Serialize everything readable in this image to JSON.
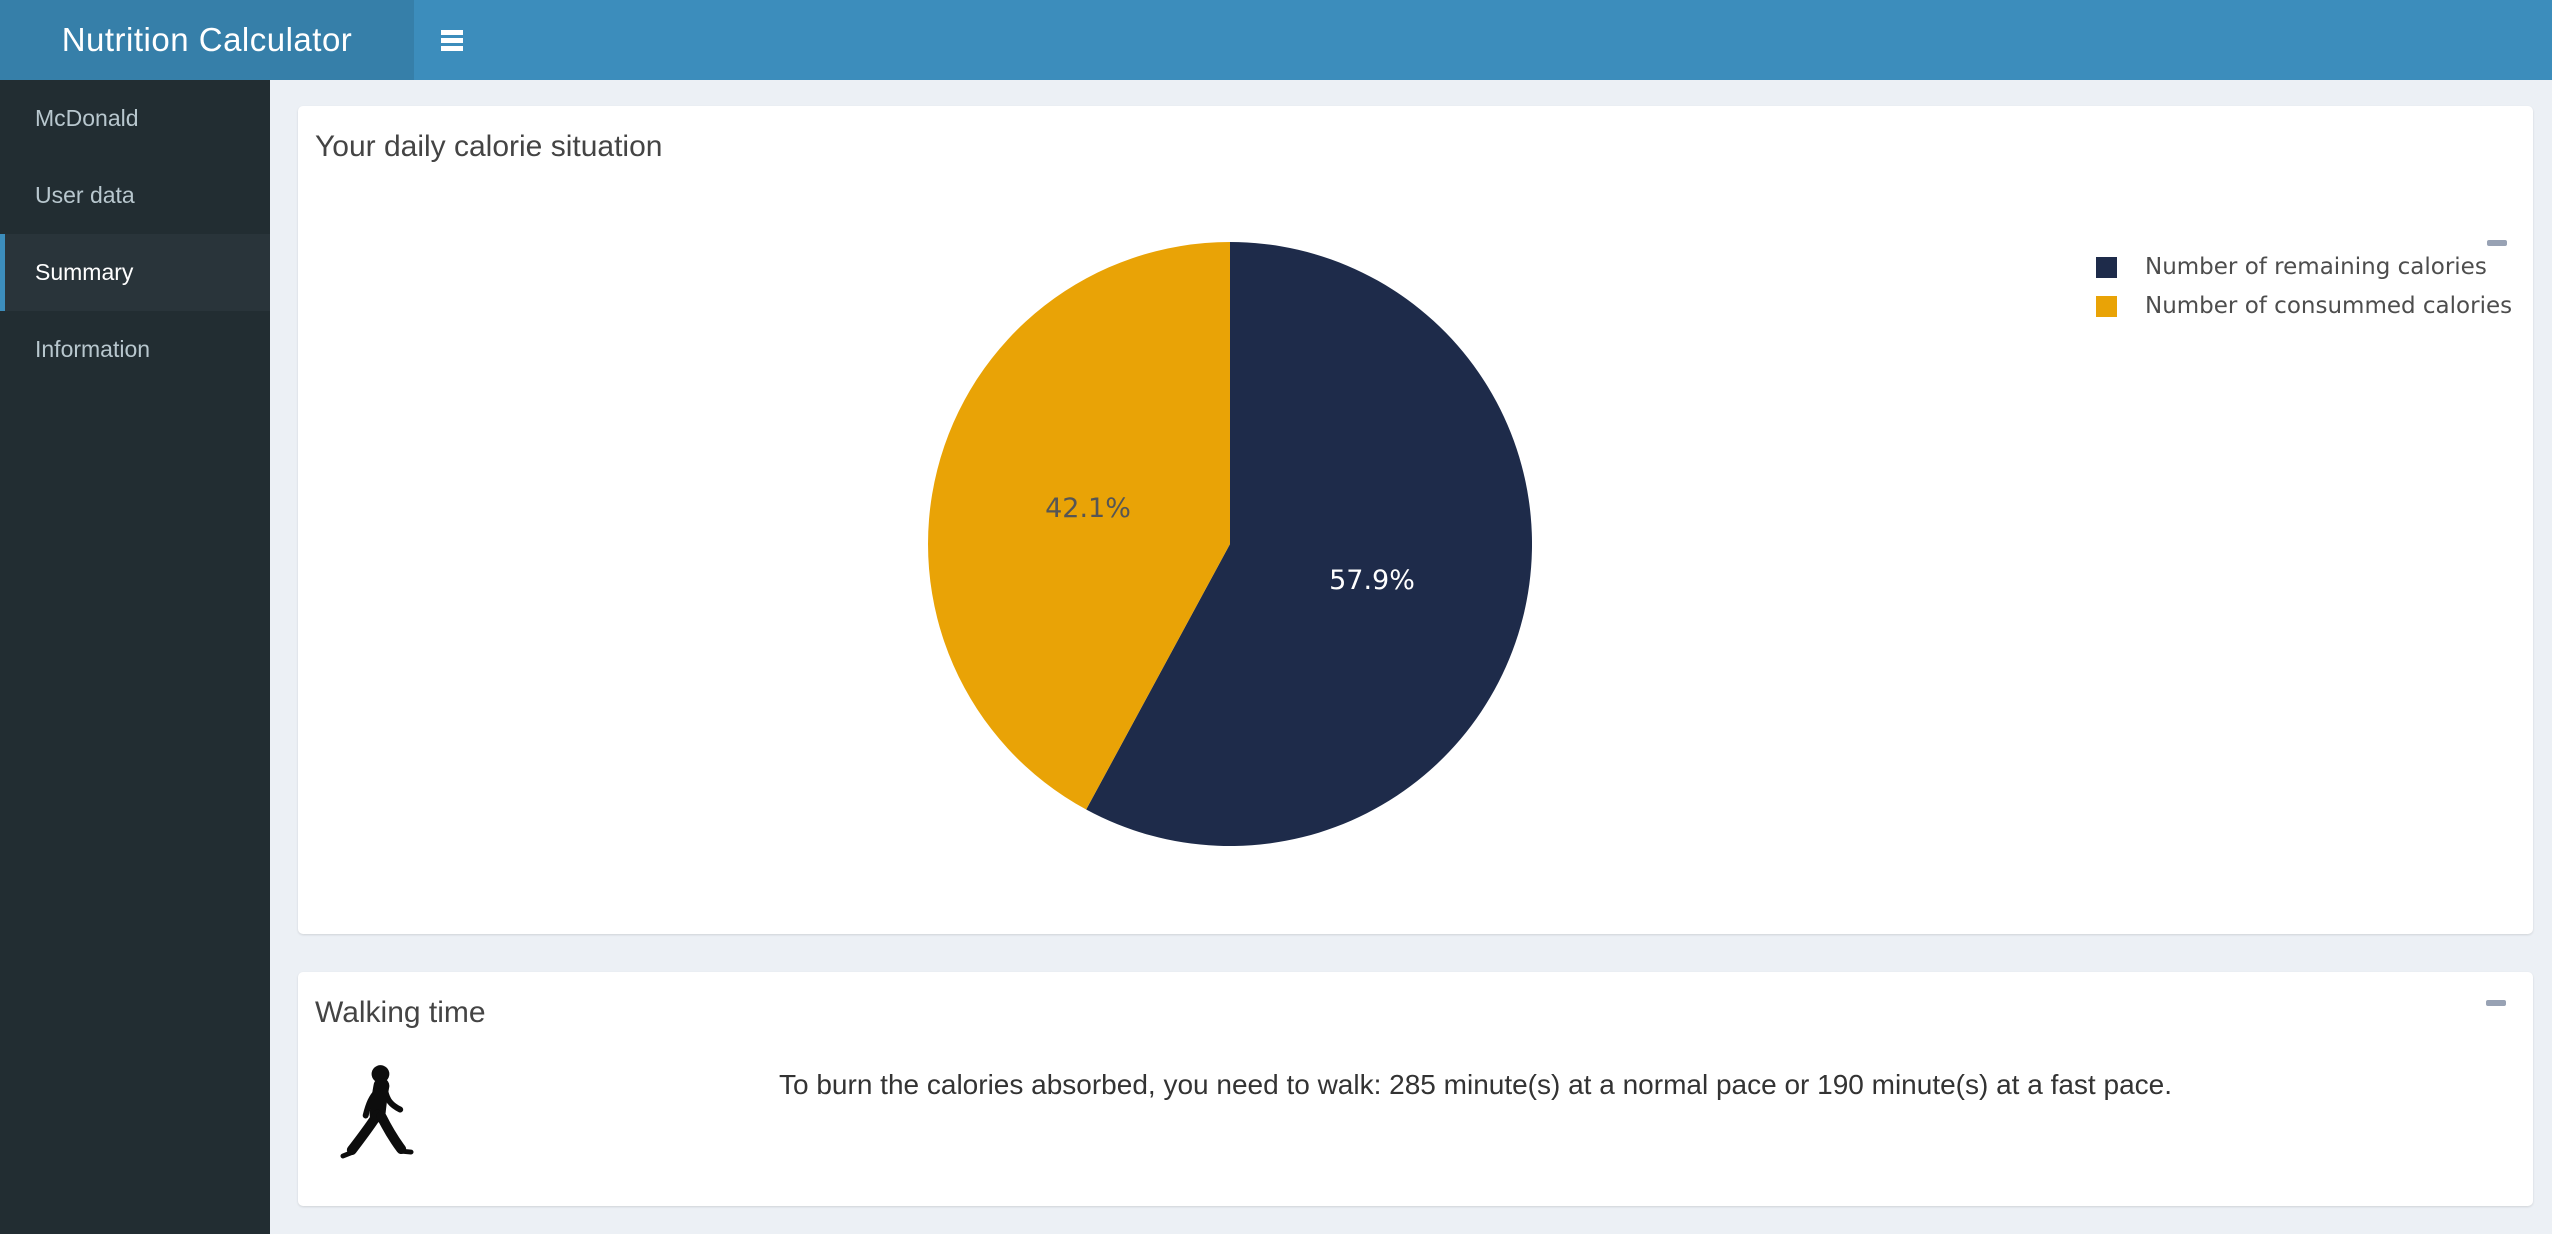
{
  "app": {
    "title": "Nutrition Calculator"
  },
  "sidebar": {
    "items": [
      {
        "label": "McDonald",
        "active": false
      },
      {
        "label": "User data",
        "active": false
      },
      {
        "label": "Summary",
        "active": true
      },
      {
        "label": "Information",
        "active": false
      }
    ]
  },
  "cards": {
    "calorie": {
      "title": "Your daily calorie situation"
    },
    "walking": {
      "title": "Walking time",
      "text": "To burn the calories absorbed, you need to walk: 285 minute(s) at a normal pace or 190 minute(s) at a fast pace."
    }
  },
  "chart_data": {
    "type": "pie",
    "title": "Your daily calorie situation",
    "slices": [
      {
        "label": "Number of remaining calories",
        "value": 57.9,
        "display": "57.9%",
        "color": "#1e2b4a",
        "text_color": "#ffffff"
      },
      {
        "label": "Number of consummed calories",
        "value": 42.1,
        "display": "42.1%",
        "color": "#e9a306",
        "text_color": "#555555"
      }
    ],
    "start_angle_deg": 0,
    "direction": "clockwise",
    "legend_position": "top-right",
    "labels_inside": true
  },
  "walking_stats": {
    "normal_pace_minutes": 285,
    "fast_pace_minutes": 190
  },
  "colors": {
    "navbar": "#3c8dbc",
    "logo_bg": "#367fa9",
    "sidebar_bg": "#222d32",
    "sidebar_active_bg": "#29343a",
    "sidebar_text": "#b8c7ce",
    "active_border": "#3c8dbc",
    "content_bg": "#ecf0f5",
    "card_bg": "#ffffff",
    "title_text": "#444444",
    "collapse_icon": "#98a2b4"
  }
}
